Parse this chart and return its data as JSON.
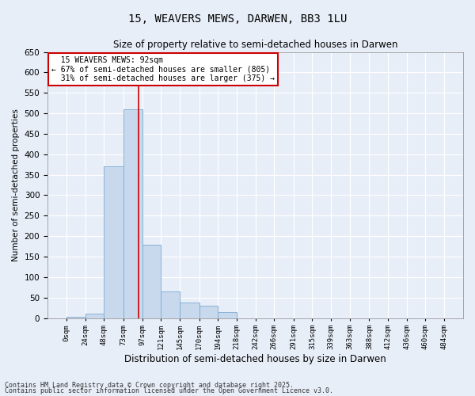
{
  "title": "15, WEAVERS MEWS, DARWEN, BB3 1LU",
  "subtitle": "Size of property relative to semi-detached houses in Darwen",
  "xlabel": "Distribution of semi-detached houses by size in Darwen",
  "ylabel": "Number of semi-detached properties",
  "property_label": "15 WEAVERS MEWS: 92sqm",
  "pct_smaller": 67,
  "count_smaller": 805,
  "pct_larger": 31,
  "count_larger": 375,
  "bin_edges": [
    0,
    24,
    48,
    73,
    97,
    121,
    145,
    170,
    194,
    218,
    242,
    266,
    291,
    315,
    339,
    363,
    388,
    412,
    436,
    460,
    484
  ],
  "bin_labels": [
    "0sqm",
    "24sqm",
    "48sqm",
    "73sqm",
    "97sqm",
    "121sqm",
    "145sqm",
    "170sqm",
    "194sqm",
    "218sqm",
    "242sqm",
    "266sqm",
    "291sqm",
    "315sqm",
    "339sqm",
    "363sqm",
    "388sqm",
    "412sqm",
    "436sqm",
    "460sqm",
    "484sqm"
  ],
  "counts": [
    3,
    10,
    370,
    510,
    180,
    65,
    38,
    30,
    15,
    0,
    0,
    0,
    0,
    0,
    0,
    0,
    0,
    0,
    0,
    0
  ],
  "bar_color": "#c8d9ee",
  "bar_edge_color": "#7aaad0",
  "vline_color": "#cc0000",
  "vline_x": 92,
  "ylim": [
    0,
    650
  ],
  "yticks": [
    0,
    50,
    100,
    150,
    200,
    250,
    300,
    350,
    400,
    450,
    500,
    550,
    600,
    650
  ],
  "bg_color": "#e8eef8",
  "grid_color": "#ffffff",
  "annotation_box_color": "#cc0000",
  "footer_line1": "Contains HM Land Registry data © Crown copyright and database right 2025.",
  "footer_line2": "Contains public sector information licensed under the Open Government Licence v3.0."
}
